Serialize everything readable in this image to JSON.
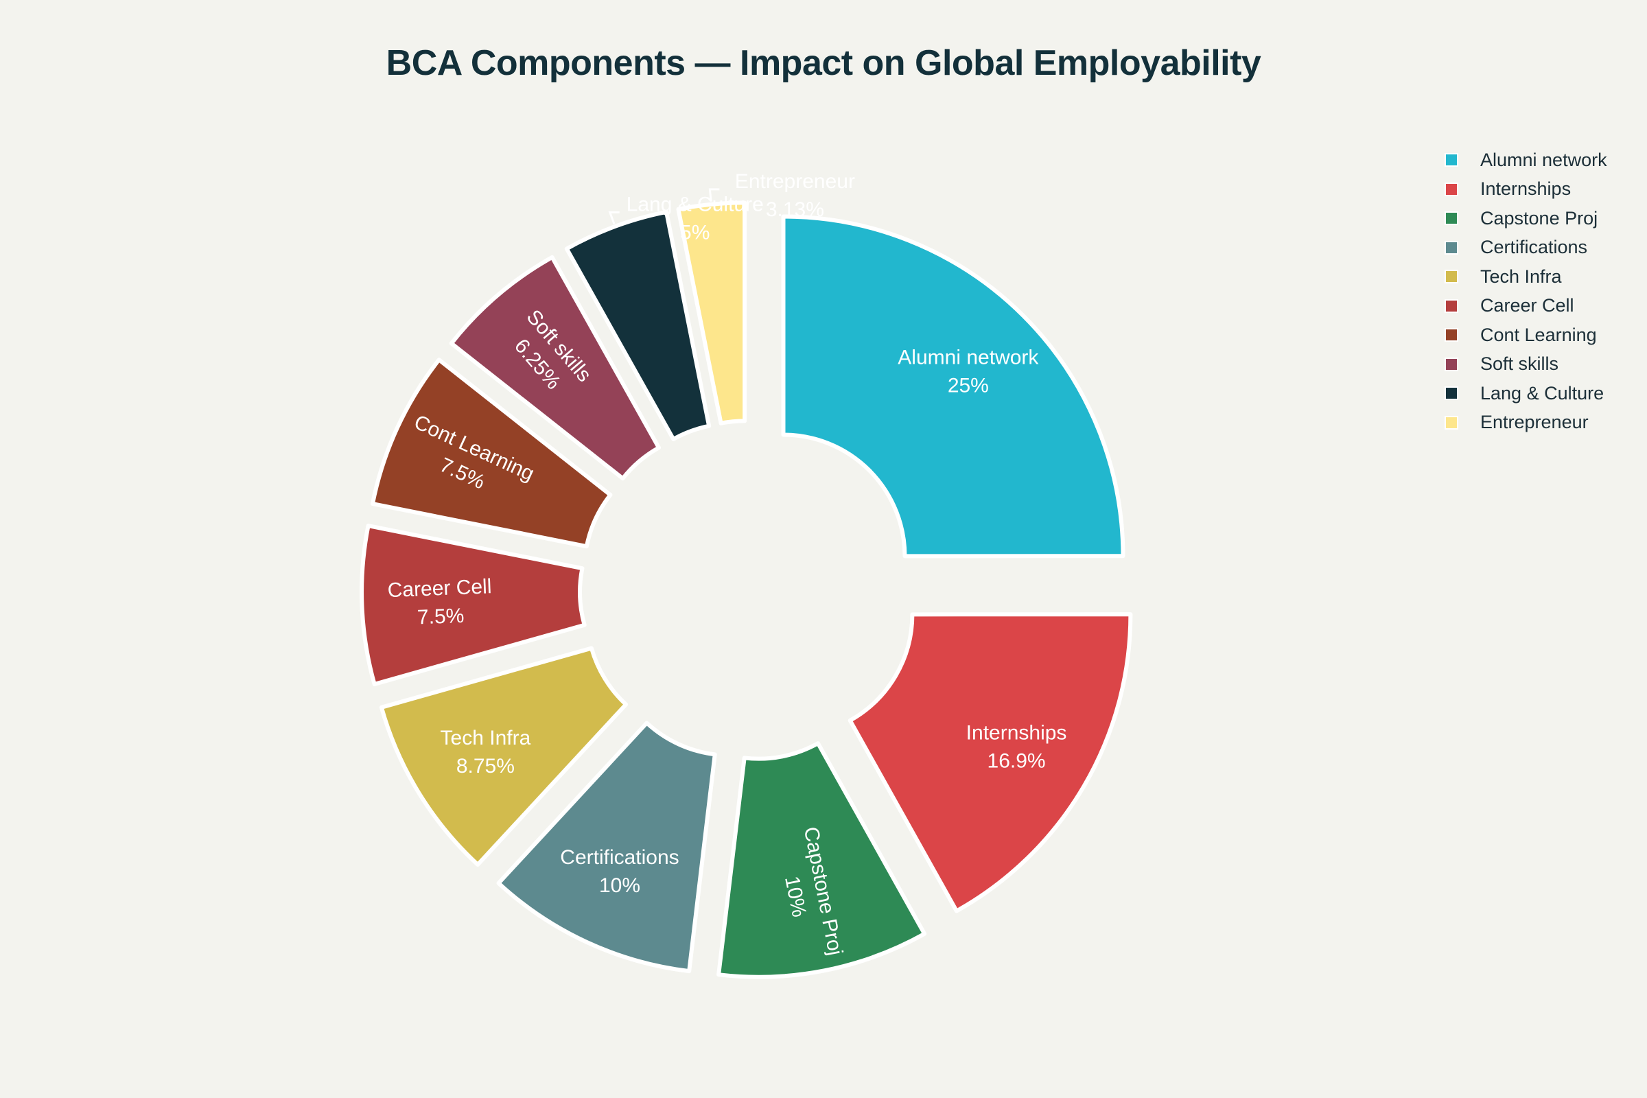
{
  "chart_data": {
    "type": "pie",
    "title": "BCA Components — Impact on Global Employability",
    "hole": true,
    "legend_position": "right",
    "slices": [
      {
        "label": "Alumni network",
        "value": 25,
        "percent_label": "25%",
        "color": "#22b7ce",
        "text_color": "#ffffff",
        "label_position": "inside",
        "label_orientation": "horizontal",
        "pulled": true
      },
      {
        "label": "Internships",
        "value": 16.9,
        "percent_label": "16.9%",
        "color": "#db4548",
        "text_color": "#ffffff",
        "label_position": "inside",
        "label_orientation": "horizontal",
        "pulled": true
      },
      {
        "label": "Capstone Proj",
        "value": 10,
        "percent_label": "10%",
        "color": "#2e8a55",
        "text_color": "#ffffff",
        "label_position": "inside",
        "label_orientation": "radial",
        "pulled": true
      },
      {
        "label": "Certifications",
        "value": 10,
        "percent_label": "10%",
        "color": "#5d8a8f",
        "text_color": "#ffffff",
        "label_position": "inside",
        "label_orientation": "horizontal",
        "pulled": true
      },
      {
        "label": "Tech Infra",
        "value": 8.75,
        "percent_label": "8.75%",
        "color": "#d2bb4d",
        "text_color": "#ffffff",
        "label_position": "inside",
        "label_orientation": "horizontal",
        "pulled": true
      },
      {
        "label": "Career Cell",
        "value": 7.5,
        "percent_label": "7.5%",
        "color": "#b43e3d",
        "text_color": "#ffffff",
        "label_position": "inside",
        "label_orientation": "radial",
        "pulled": true
      },
      {
        "label": "Cont Learning",
        "value": 7.5,
        "percent_label": "7.5%",
        "color": "#944126",
        "text_color": "#ffffff",
        "label_position": "inside",
        "label_orientation": "radial",
        "pulled": true
      },
      {
        "label": "Soft skills",
        "value": 6.25,
        "percent_label": "6.25%",
        "color": "#944257",
        "text_color": "#ffffff",
        "label_position": "inside",
        "label_orientation": "radial",
        "pulled": true
      },
      {
        "label": "Lang & Culture",
        "value": 5,
        "percent_label": "5%",
        "color": "#13313b",
        "text_color": "#ffffff",
        "label_position": "outside",
        "label_orientation": "horizontal",
        "pulled": true
      },
      {
        "label": "Entrepreneur",
        "value": 3.13,
        "percent_label": "3.13%",
        "color": "#fde68c",
        "text_color": "#ffffff",
        "label_position": "outside",
        "label_orientation": "horizontal",
        "pulled": true
      }
    ]
  }
}
